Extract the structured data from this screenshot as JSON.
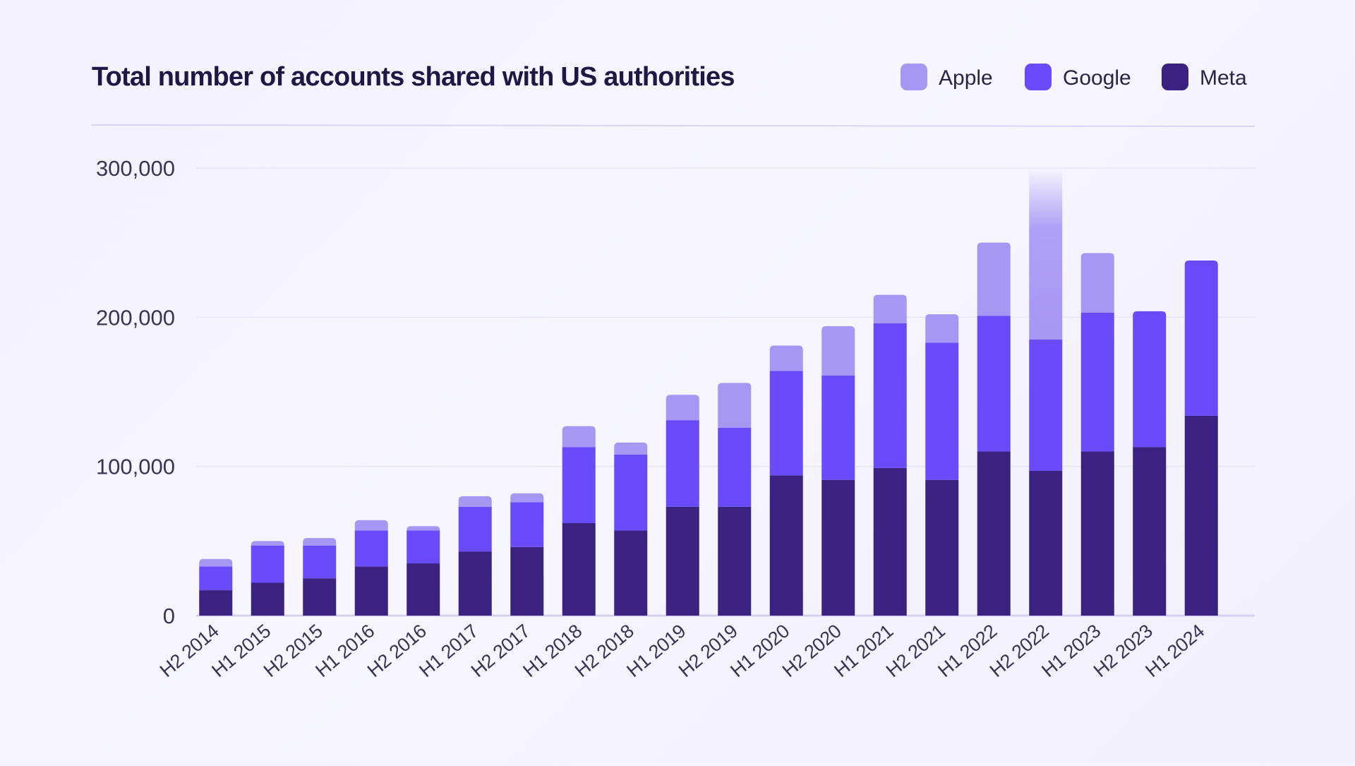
{
  "chart_data": {
    "type": "bar",
    "stacked": true,
    "title": "Total number of accounts shared with US authorities",
    "categories": [
      "H2 2014",
      "H1 2015",
      "H2 2015",
      "H1 2016",
      "H2 2016",
      "H1 2017",
      "H2 2017",
      "H1 2018",
      "H2 2018",
      "H1 2019",
      "H2 2019",
      "H1 2020",
      "H2 2020",
      "H1 2021",
      "H2 2021",
      "H1 2022",
      "H2 2022",
      "H1 2023",
      "H2 2023",
      "H1 2024"
    ],
    "series": [
      {
        "name": "Meta",
        "color": "#3b2180",
        "values": [
          17000,
          22000,
          25000,
          33000,
          35000,
          43000,
          46000,
          62000,
          57000,
          73000,
          73000,
          94000,
          91000,
          99000,
          91000,
          110000,
          97000,
          110000,
          113000,
          134000
        ]
      },
      {
        "name": "Google",
        "color": "#6a4bfb",
        "values": [
          16000,
          25000,
          22000,
          24000,
          22000,
          30000,
          30000,
          51000,
          51000,
          58000,
          53000,
          70000,
          70000,
          97000,
          92000,
          91000,
          88000,
          93000,
          91000,
          104000
        ]
      },
      {
        "name": "Apple",
        "color": "#a797f5",
        "values": [
          5000,
          3000,
          5000,
          7000,
          3000,
          7000,
          6000,
          14000,
          8000,
          17000,
          30000,
          17000,
          33000,
          19000,
          19000,
          49000,
          120000,
          40000,
          0,
          0
        ]
      }
    ],
    "legend": [
      "Apple",
      "Google",
      "Meta"
    ],
    "legend_position": "top-right",
    "yticks": [
      0,
      100000,
      200000,
      300000
    ],
    "ytick_labels": [
      "0",
      "100,000",
      "200,000",
      "300,000"
    ],
    "ylim": [
      0,
      300000
    ],
    "grid": true,
    "xlabel": "",
    "ylabel": ""
  }
}
